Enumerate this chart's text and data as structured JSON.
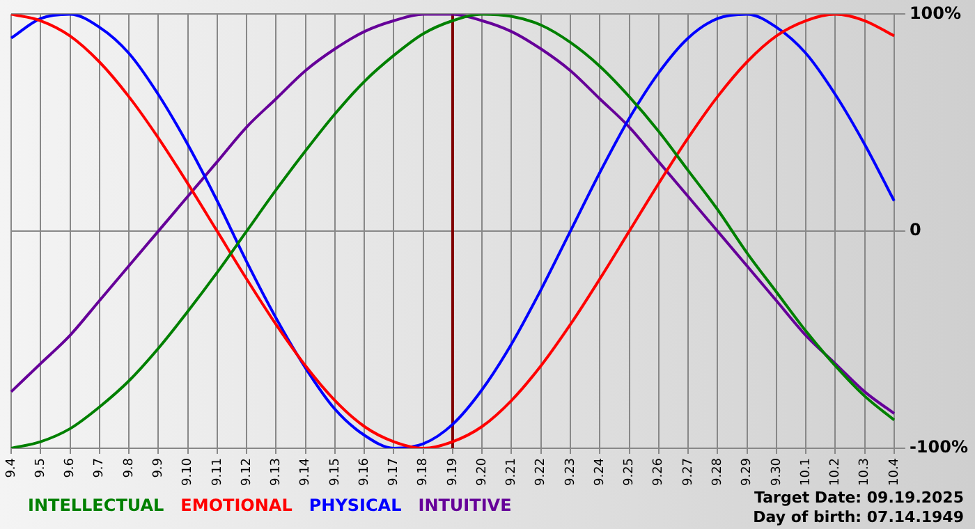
{
  "chart_data": {
    "type": "line",
    "categories": [
      "9.4",
      "9.5",
      "9.6",
      "9.7",
      "9.8",
      "9.9",
      "9.10",
      "9.11",
      "9.12",
      "9.13",
      "9.14",
      "9.15",
      "9.16",
      "9.17",
      "9.18",
      "9.19",
      "9.20",
      "9.21",
      "9.22",
      "9.23",
      "9.24",
      "9.25",
      "9.26",
      "9.27",
      "9.28",
      "9.29",
      "9.30",
      "10.1",
      "10.2",
      "10.3",
      "10.4"
    ],
    "series": [
      {
        "name": "INTELLECTUAL",
        "color": "#008000",
        "values": [
          -100,
          -97,
          -91,
          -81,
          -69,
          -54,
          -37,
          -19,
          0,
          19,
          37,
          54,
          69,
          81,
          91,
          97,
          100,
          99,
          95,
          87,
          76,
          62,
          46,
          28,
          10,
          -10,
          -28,
          -46,
          -62,
          -76,
          -87
        ]
      },
      {
        "name": "EMOTIONAL",
        "color": "#ff0000",
        "values": [
          100,
          97,
          90,
          78,
          62,
          43,
          22,
          0,
          -22,
          -43,
          -62,
          -78,
          -90,
          -97,
          -100,
          -97,
          -90,
          -78,
          -62,
          -43,
          -22,
          0,
          22,
          43,
          62,
          78,
          90,
          97,
          100,
          97,
          90
        ]
      },
      {
        "name": "PHYSICAL",
        "color": "#0000ff",
        "values": [
          89,
          98,
          100,
          94,
          82,
          63,
          40,
          14,
          -14,
          -40,
          -63,
          -82,
          -94,
          -100,
          -98,
          -89,
          -73,
          -52,
          -27,
          0,
          27,
          52,
          73,
          89,
          98,
          100,
          94,
          82,
          63,
          40,
          14
        ]
      },
      {
        "name": "INTUITIVE",
        "color": "#660099",
        "values": [
          -74,
          -61,
          -48,
          -32,
          -16,
          0,
          16,
          32,
          48,
          61,
          74,
          84,
          92,
          97,
          100,
          100,
          97,
          92,
          84,
          74,
          61,
          48,
          32,
          16,
          0,
          -16,
          -32,
          -48,
          -61,
          -74,
          -84
        ]
      }
    ],
    "ylim": [
      -100,
      100
    ],
    "yticks": [
      {
        "value": -100,
        "label": "-100%"
      },
      0,
      {
        "value": 100,
        "label": "100%"
      }
    ],
    "grid": true,
    "legend": "bottom",
    "marker": "none",
    "line_style": "solid",
    "ref_lines": [
      {
        "axis": "x",
        "value": "9.19",
        "color": "#800000"
      }
    ],
    "annotations": [
      "Target Date: 09.19.2025",
      "Day of birth: 07.14.1949"
    ]
  }
}
